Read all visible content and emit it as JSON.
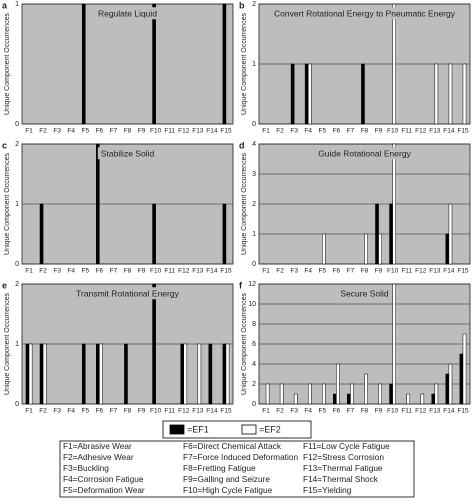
{
  "chart_data": [
    {
      "type": "bar",
      "panel": "a",
      "title": "Regulate Liquid",
      "y_label": "Unique Component Occurrences",
      "categories": [
        "F1",
        "F2",
        "F3",
        "F4",
        "F5",
        "F6",
        "F7",
        "F8",
        "F9",
        "F10",
        "F11",
        "F12",
        "F13",
        "F14",
        "F15"
      ],
      "series": [
        {
          "name": "=EF1",
          "color": "#000000",
          "values": [
            0,
            0,
            0,
            0,
            1,
            0,
            0,
            0,
            0,
            1,
            0,
            0,
            0,
            0,
            1
          ]
        },
        {
          "name": "=EF2",
          "color": "#ffffff",
          "values": [
            0,
            0,
            0,
            0,
            0,
            0,
            0,
            0,
            0,
            0,
            0,
            0,
            0,
            0,
            0
          ]
        }
      ],
      "ylim": [
        0,
        1
      ],
      "yticks": [
        0,
        1
      ],
      "grid": true
    },
    {
      "type": "bar",
      "panel": "b",
      "title": "Convert Rotational Energy to Pneumatic Energy",
      "y_label": "Unique Component Occurrences",
      "categories": [
        "F1",
        "F2",
        "F3",
        "F4",
        "F5",
        "F6",
        "F7",
        "F8",
        "F9",
        "F10",
        "F11",
        "F12",
        "F13",
        "F14",
        "F15"
      ],
      "series": [
        {
          "name": "=EF1",
          "color": "#000000",
          "values": [
            0,
            0,
            1,
            1,
            0,
            0,
            0,
            1,
            0,
            0,
            0,
            0,
            0,
            0,
            0
          ]
        },
        {
          "name": "=EF2",
          "color": "#ffffff",
          "values": [
            0,
            0,
            0,
            1,
            0,
            0,
            0,
            0,
            0,
            2,
            0,
            0,
            1,
            1,
            1
          ]
        }
      ],
      "ylim": [
        0,
        2
      ],
      "yticks": [
        0,
        1,
        2
      ],
      "grid": true
    },
    {
      "type": "bar",
      "panel": "c",
      "title": "Stabilize Solid",
      "y_label": "Unique Component Occurrences",
      "categories": [
        "F1",
        "F2",
        "F3",
        "F4",
        "F5",
        "F6",
        "F7",
        "F8",
        "F9",
        "F10",
        "F11",
        "F12",
        "F13",
        "F14",
        "F15"
      ],
      "series": [
        {
          "name": "=EF1",
          "color": "#000000",
          "values": [
            0,
            1,
            0,
            0,
            0,
            2,
            0,
            0,
            0,
            1,
            0,
            0,
            0,
            0,
            1
          ]
        },
        {
          "name": "=EF2",
          "color": "#ffffff",
          "values": [
            0,
            0,
            0,
            0,
            0,
            0,
            0,
            0,
            0,
            0,
            0,
            0,
            0,
            0,
            0
          ]
        }
      ],
      "ylim": [
        0,
        2
      ],
      "yticks": [
        0,
        1,
        2
      ],
      "grid": true
    },
    {
      "type": "bar",
      "panel": "d",
      "title": "Guide Rotational Energy",
      "y_label": "Unique Component Occurrences",
      "categories": [
        "F1",
        "F2",
        "F3",
        "F4",
        "F5",
        "F6",
        "F7",
        "F8",
        "F9",
        "F10",
        "F11",
        "F12",
        "F13",
        "F14",
        "F15"
      ],
      "series": [
        {
          "name": "=EF1",
          "color": "#000000",
          "values": [
            0,
            0,
            0,
            0,
            0,
            0,
            0,
            0,
            2,
            2,
            0,
            0,
            0,
            1,
            0
          ]
        },
        {
          "name": "=EF2",
          "color": "#ffffff",
          "values": [
            0,
            0,
            0,
            0,
            1,
            0,
            0,
            1,
            1,
            4,
            0,
            0,
            0,
            2,
            0
          ]
        }
      ],
      "ylim": [
        0,
        4
      ],
      "yticks": [
        0,
        1,
        2,
        3,
        4
      ],
      "grid": true
    },
    {
      "type": "bar",
      "panel": "e",
      "title": "Transmit Rotational Energy",
      "y_label": "Unique Component Occurrences",
      "categories": [
        "F1",
        "F2",
        "F3",
        "F4",
        "F5",
        "F6",
        "F7",
        "F8",
        "F9",
        "F10",
        "F11",
        "F12",
        "F13",
        "F14",
        "F15"
      ],
      "series": [
        {
          "name": "=EF1",
          "color": "#000000",
          "values": [
            1,
            1,
            0,
            0,
            1,
            1,
            0,
            1,
            0,
            2,
            0,
            1,
            0,
            1,
            1
          ]
        },
        {
          "name": "=EF2",
          "color": "#ffffff",
          "values": [
            1,
            1,
            0,
            0,
            0,
            1,
            0,
            0,
            0,
            0,
            0,
            1,
            1,
            0,
            1
          ]
        }
      ],
      "ylim": [
        0,
        2
      ],
      "yticks": [
        0,
        1,
        2
      ],
      "grid": true
    },
    {
      "type": "bar",
      "panel": "f",
      "title": "Secure Solid",
      "y_label": "Unique Component Occurrences",
      "categories": [
        "F1",
        "F2",
        "F3",
        "F4",
        "F5",
        "F6",
        "F7",
        "F8",
        "F9",
        "F10",
        "F11",
        "F12",
        "F13",
        "F14",
        "F15"
      ],
      "series": [
        {
          "name": "=EF1",
          "color": "#000000",
          "values": [
            0,
            0,
            0,
            0,
            0,
            1,
            1,
            0,
            0,
            2,
            0,
            0,
            1,
            3,
            5
          ]
        },
        {
          "name": "=EF2",
          "color": "#ffffff",
          "values": [
            2,
            2,
            1,
            2,
            2,
            4,
            2,
            3,
            2,
            12,
            1,
            1,
            2,
            4,
            7
          ]
        }
      ],
      "ylim": [
        0,
        12
      ],
      "yticks": [
        0,
        2,
        4,
        6,
        8,
        10,
        12
      ],
      "grid": true
    }
  ],
  "key": [
    "F1=Abrasive Wear",
    "F2=Adhesive Wear",
    "F3=Buckling",
    "F4=Corrosion Fatigue",
    "F5=Deformation Wear",
    "F6=Direct Chemical Attack",
    "F7=Force Induced Deformation",
    "F8=Fretting Fatigue",
    "F9=Galling and Seizure",
    "F10=High Cycle Fatigue",
    "F11=Low Cycle Fatigue",
    "F12=Stress Corrosion",
    "F13=Thermal Fatigue",
    "F14=Thermal Shock",
    "F15=Yielding"
  ]
}
